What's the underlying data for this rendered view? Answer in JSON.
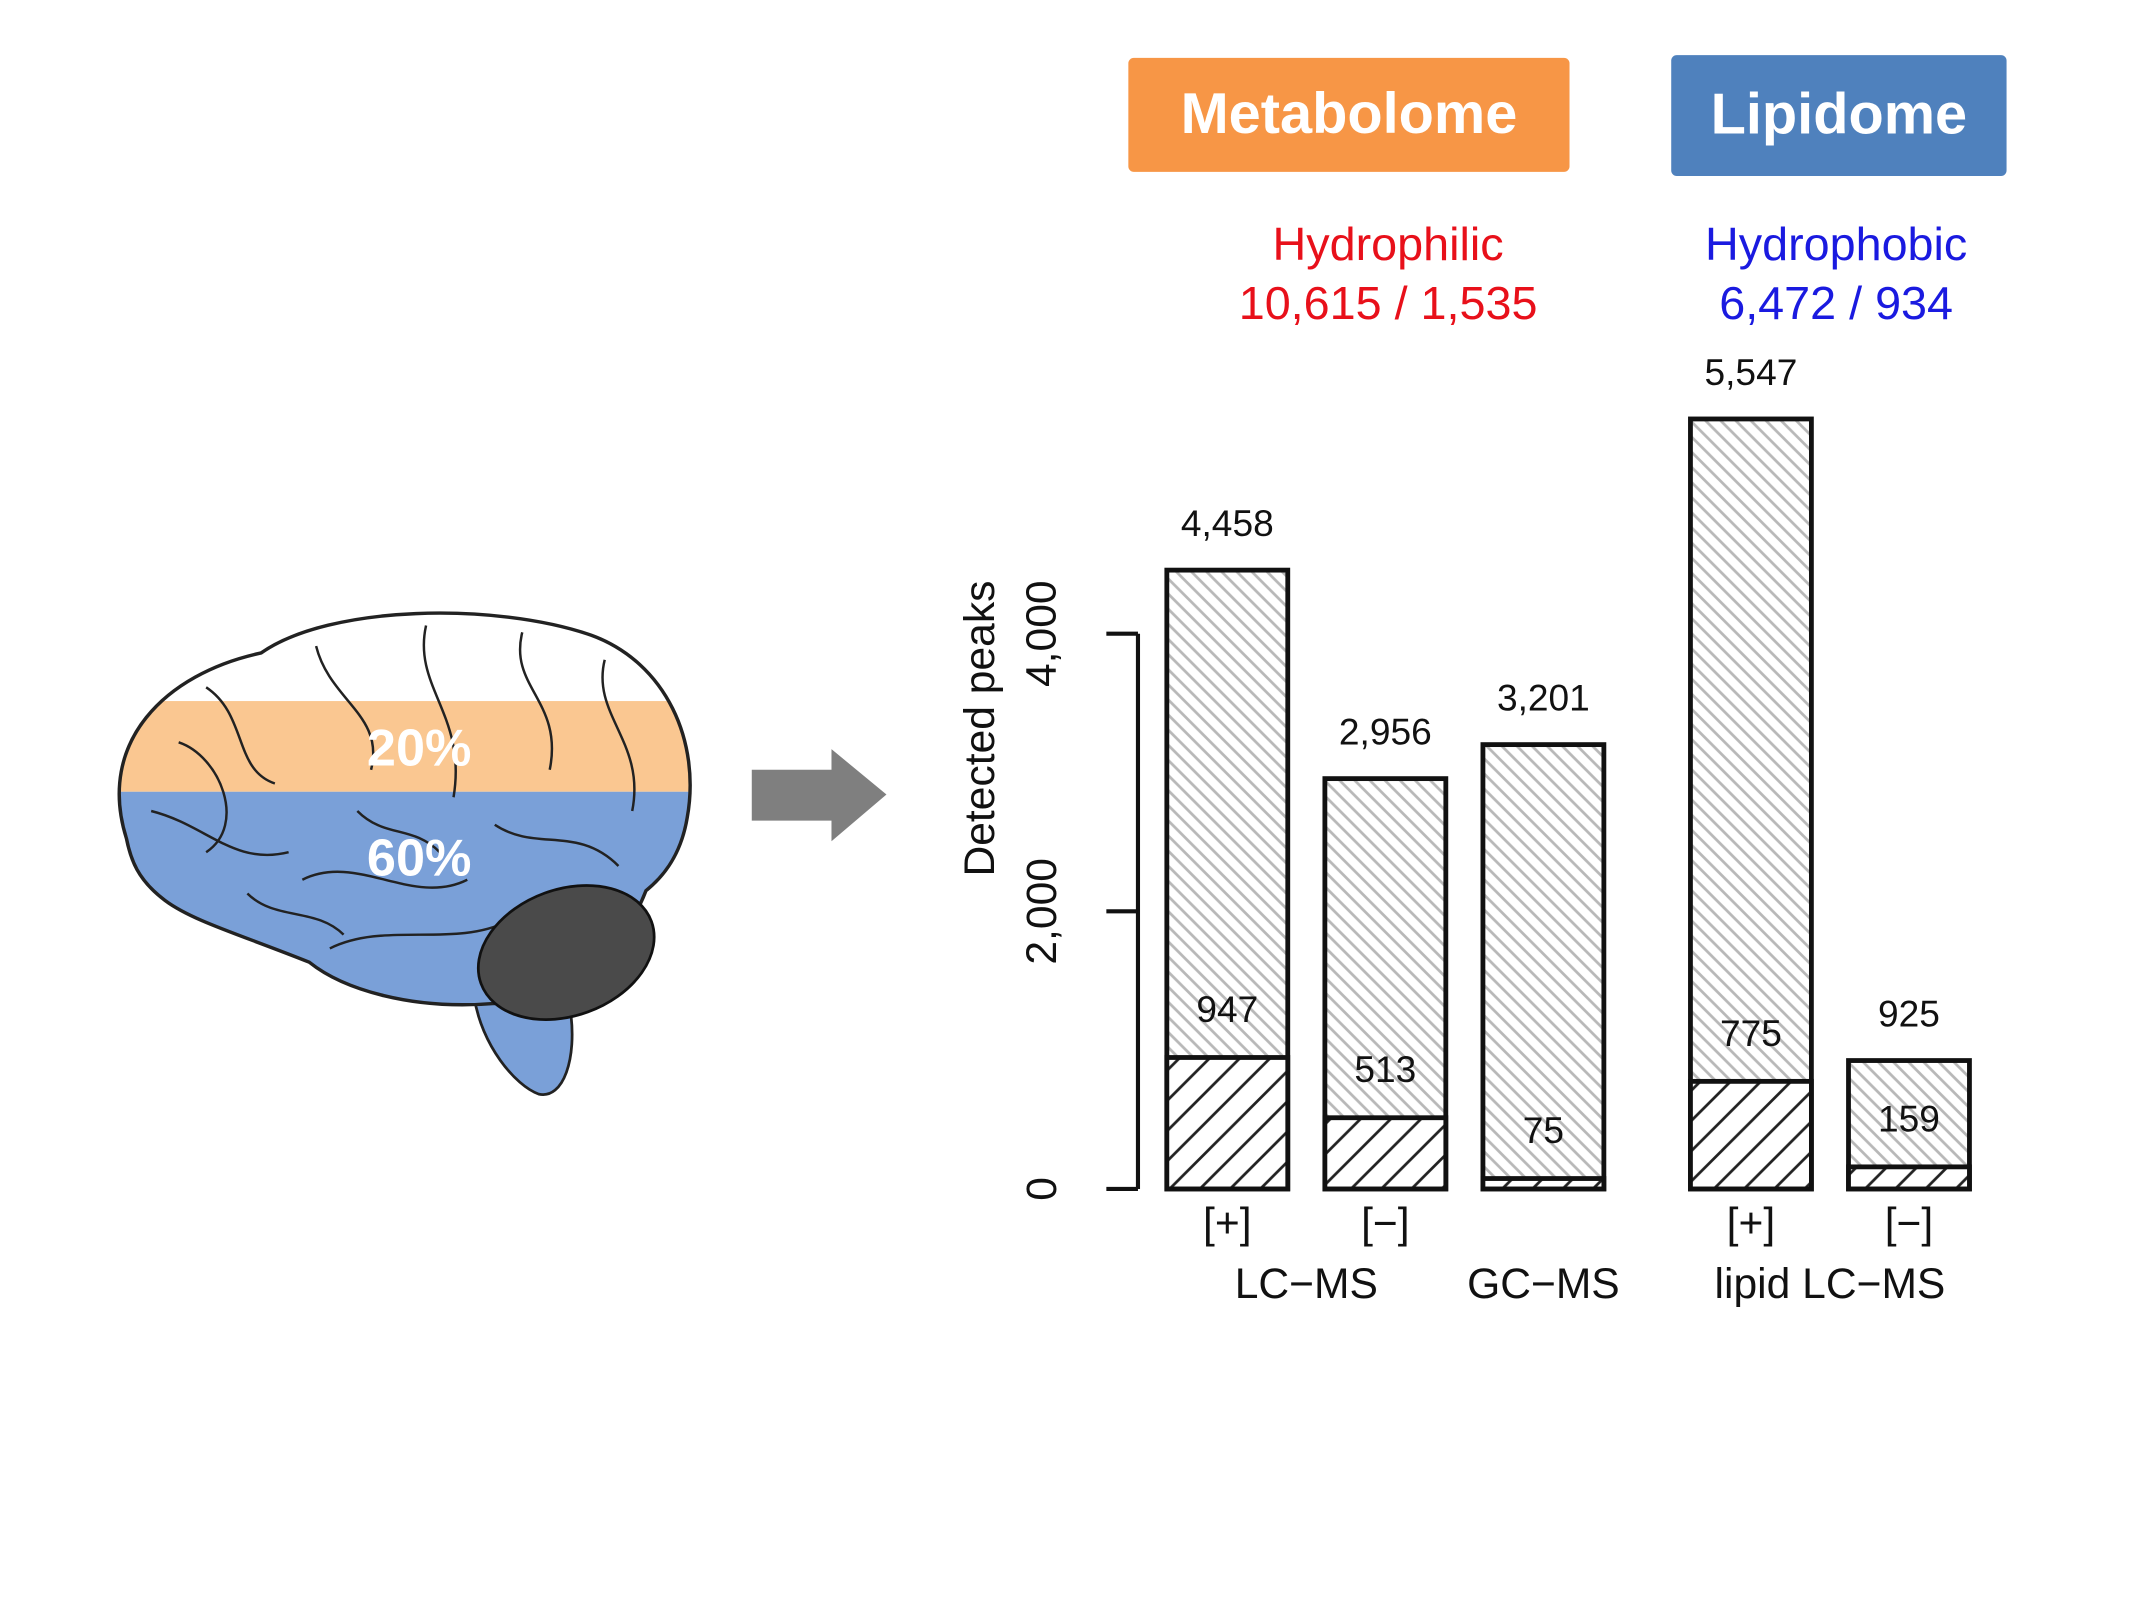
{
  "chart_data": {
    "type": "bar",
    "ylabel": "Detected peaks",
    "categories": [
      "[+]",
      "[−]",
      null,
      "[+]",
      "[−]"
    ],
    "groups": [
      "LC−MS",
      "GC−MS",
      "lipid LC−MS"
    ],
    "series": [
      {
        "color": "#b8b8b8",
        "values": [
          4458,
          2956,
          3201,
          5547,
          925
        ],
        "value_labels": [
          "4,458",
          "2,956",
          "3,201",
          "5,547",
          "925"
        ]
      },
      {
        "color": "#222222",
        "values": [
          947,
          513,
          75,
          775,
          159
        ]
      }
    ],
    "ylim": [
      0,
      4000
    ],
    "yticks": [
      0,
      {
        "value": 2000,
        "label": "2,000"
      },
      {
        "value": 4000,
        "label": "4,000"
      }
    ],
    "panels": [
      {
        "title": "Metabolome",
        "color": "#f79646",
        "subtitle": "Hydrophilic",
        "summary": "10,615 / 1,535",
        "text_color": "#e8101a"
      },
      {
        "title": "Lipidome",
        "color": "#4f81bd",
        "subtitle": "Hydrophobic",
        "summary": "6,472 / 934",
        "text_color": "#1a1ae0"
      }
    ],
    "brain_labels": [
      "20%",
      "60%"
    ]
  }
}
